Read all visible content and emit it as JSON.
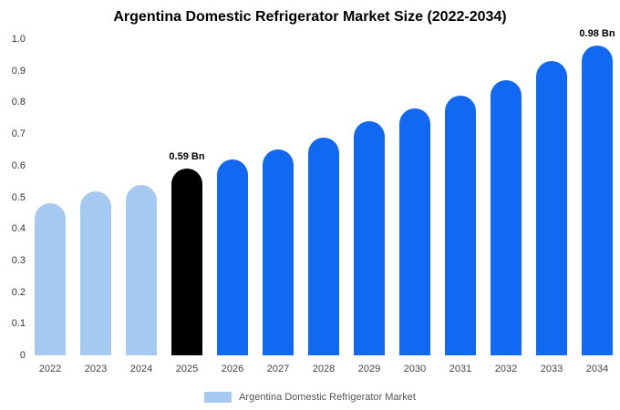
{
  "title": "Argentina Domestic Refrigerator Market Size (2022-2034)",
  "legend": {
    "label": "Argentina Domestic Refrigerator Market",
    "swatch_color": "#a6c9f2"
  },
  "colors": {
    "historical": "#a6c9f2",
    "highlight": "#000000",
    "forecast": "#1169f2"
  },
  "chart_data": {
    "type": "bar",
    "title": "Argentina Domestic Refrigerator Market Size (2022-2034)",
    "categories": [
      "2022",
      "2023",
      "2024",
      "2025",
      "2026",
      "2027",
      "2028",
      "2029",
      "2030",
      "2031",
      "2032",
      "2033",
      "2034"
    ],
    "values": [
      0.48,
      0.52,
      0.54,
      0.59,
      0.62,
      0.65,
      0.69,
      0.74,
      0.78,
      0.82,
      0.87,
      0.93,
      0.98
    ],
    "bar_colors": [
      "#a6c9f2",
      "#a6c9f2",
      "#a6c9f2",
      "#000000",
      "#1169f2",
      "#1169f2",
      "#1169f2",
      "#1169f2",
      "#1169f2",
      "#1169f2",
      "#1169f2",
      "#1169f2",
      "#1169f2"
    ],
    "annotations": [
      {
        "category": "2025",
        "text": "0.59 Bn"
      },
      {
        "category": "2034",
        "text": "0.98 Bn"
      }
    ],
    "xlabel": "",
    "ylabel": "",
    "ylim": [
      0,
      1.0
    ],
    "yticks": [
      0,
      0.1,
      0.2,
      0.3,
      0.4,
      0.5,
      0.6,
      0.7,
      0.8,
      0.9,
      1.0
    ],
    "ytick_labels": [
      "0",
      "0.1",
      "0.2",
      "0.3",
      "0.4",
      "0.5",
      "0.6",
      "0.7",
      "0.8",
      "0.9",
      "1.0"
    ],
    "grid": false,
    "legend_position": "bottom",
    "legend_entries": [
      "Argentina Domestic Refrigerator Market"
    ]
  }
}
